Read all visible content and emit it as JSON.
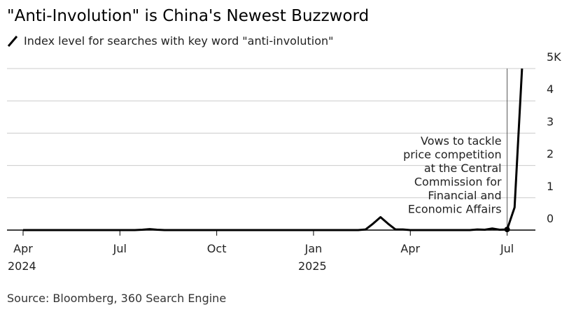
{
  "chart_data": {
    "type": "line",
    "title": "\"Anti-Involution\" is China's Newest Buzzword",
    "source": "Source: Bloomberg, 360 Search Engine",
    "categories": [
      "Apr",
      null,
      null,
      null,
      null,
      null,
      null,
      null,
      null,
      null,
      null,
      null,
      null,
      "Jul",
      null,
      null,
      null,
      null,
      null,
      null,
      null,
      null,
      null,
      null,
      null,
      null,
      "Oct",
      null,
      null,
      null,
      null,
      null,
      null,
      null,
      null,
      null,
      null,
      null,
      null,
      "Jan",
      null,
      null,
      null,
      null,
      null,
      null,
      null,
      null,
      null,
      null,
      null,
      null,
      "Apr",
      null,
      null,
      null,
      null,
      null,
      null,
      null,
      null,
      null,
      null,
      null,
      null,
      "Jul",
      null,
      null
    ],
    "category_years": {
      "0": "2024",
      "39": "2025"
    },
    "series": [
      {
        "name": "Index level for searches with key word \"anti-involution\"",
        "color": "#000000",
        "values": [
          0,
          0,
          0,
          0,
          0,
          0,
          0,
          0,
          0,
          0,
          0,
          0,
          0,
          0,
          0,
          0,
          0.01,
          0.03,
          0.01,
          0,
          0,
          0,
          0,
          0,
          0,
          0,
          0,
          0,
          0,
          0,
          0,
          0,
          0,
          0,
          0,
          0,
          0,
          0,
          0,
          0,
          0,
          0,
          0,
          0,
          0,
          0,
          0.02,
          0.2,
          0.4,
          0.2,
          0.02,
          0.02,
          0,
          0,
          0,
          0,
          0,
          0,
          0,
          0,
          0,
          0.02,
          0.01,
          0.05,
          0.01,
          0.02,
          0.7,
          5.0
        ]
      }
    ],
    "ylim": [
      0,
      5
    ],
    "yticks": [
      0,
      1,
      2,
      3,
      4,
      {
        "value": 5,
        "label": "5K"
      }
    ],
    "grid": true,
    "annotation": {
      "category": 65,
      "lines": [
        "Vows to tackle",
        "price competition",
        "at the Central",
        "Commission for",
        "Financial and",
        "Economic Affairs"
      ]
    }
  }
}
